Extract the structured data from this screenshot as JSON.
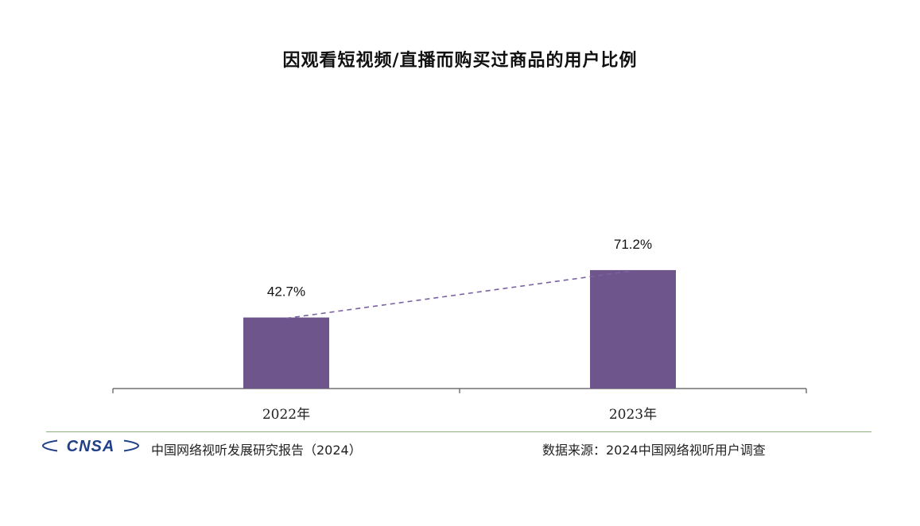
{
  "chart_data": {
    "type": "bar",
    "title": "因观看短视频/直播而购买过商品的用户比例",
    "categories": [
      "2022年",
      "2023年"
    ],
    "values": [
      42.7,
      71.2
    ],
    "data_labels": [
      "42.7%",
      "71.2%"
    ],
    "unit": "%",
    "ylim": [
      0,
      100
    ],
    "trend_line": "dashed",
    "grid": false,
    "colors": {
      "bar": "#6e568c",
      "trend_line": "#7a62a0",
      "axis": "#555555"
    }
  },
  "footer": {
    "logo_text": "CNSA",
    "report": "中国网络视听发展研究报告（2024）",
    "source": "数据来源：2024中国网络视听用户调查"
  },
  "colors": {
    "logo": "#1f3f86",
    "rule": "#8fb07a"
  }
}
